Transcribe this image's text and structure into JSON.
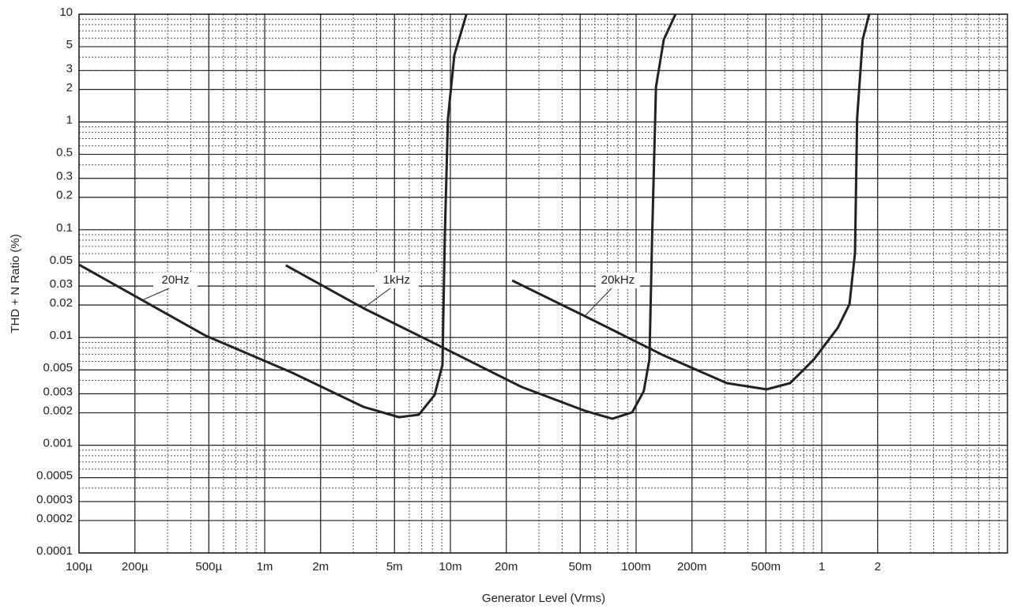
{
  "chart_data": {
    "type": "line",
    "x_label": "Generator Level (Vrms)",
    "y_label": "THD + N Ratio (%)",
    "x_log": true,
    "y_log": true,
    "grid": true,
    "xlim": [
      0.0001,
      10
    ],
    "ylim": [
      0.0001,
      10
    ],
    "xticks": [
      {
        "value": 0.0001,
        "label": "100µ"
      },
      {
        "value": 0.0002,
        "label": "200µ"
      },
      {
        "value": 0.0005,
        "label": "500µ"
      },
      {
        "value": 0.001,
        "label": "1m"
      },
      {
        "value": 0.002,
        "label": "2m"
      },
      {
        "value": 0.005,
        "label": "5m"
      },
      {
        "value": 0.01,
        "label": "10m"
      },
      {
        "value": 0.02,
        "label": "20m"
      },
      {
        "value": 0.05,
        "label": "50m"
      },
      {
        "value": 0.1,
        "label": "100m"
      },
      {
        "value": 0.2,
        "label": "200m"
      },
      {
        "value": 0.5,
        "label": "500m"
      },
      1,
      2
    ],
    "yticks": [
      10,
      5,
      3,
      2,
      1,
      0.5,
      0.3,
      0.2,
      0.1,
      0.05,
      0.03,
      0.02,
      0.01,
      0.005,
      0.003,
      0.002,
      0.001,
      0.0005,
      0.0003,
      0.0002,
      0.0001
    ],
    "series": [
      {
        "name": "20Hz",
        "color": "#222222",
        "x": [
          0.0001,
          0.000219,
          0.00048,
          0.00141,
          0.0034,
          0.00529,
          0.00676,
          0.00822,
          0.00906,
          0.00933,
          0.0097,
          0.0105,
          0.0122
        ],
        "values": [
          0.0474,
          0.0222,
          0.0104,
          0.0047,
          0.00227,
          0.00182,
          0.00192,
          0.00292,
          0.00556,
          0.0857,
          1.08,
          4.16,
          10
        ]
      },
      {
        "name": "1kHz",
        "color": "#222222",
        "x": [
          0.0013,
          0.0034,
          0.00906,
          0.0242,
          0.0529,
          0.0745,
          0.0953,
          0.11,
          0.118,
          0.122,
          0.128,
          0.141,
          0.163
        ],
        "values": [
          0.0467,
          0.0187,
          0.0081,
          0.00347,
          0.00209,
          0.00176,
          0.00202,
          0.00318,
          0.00625,
          0.0857,
          2.12,
          5.82,
          10
        ]
      },
      {
        "name": "20kHz",
        "color": "#222222",
        "x": [
          0.0215,
          0.0529,
          0.141,
          0.308,
          0.504,
          0.676,
          0.906,
          1.22,
          1.41,
          1.51,
          1.55,
          1.66,
          1.8
        ],
        "values": [
          0.0338,
          0.0158,
          0.0068,
          0.00377,
          0.0033,
          0.00377,
          0.00625,
          0.0123,
          0.0204,
          0.0611,
          1.08,
          5.82,
          10
        ]
      }
    ]
  }
}
